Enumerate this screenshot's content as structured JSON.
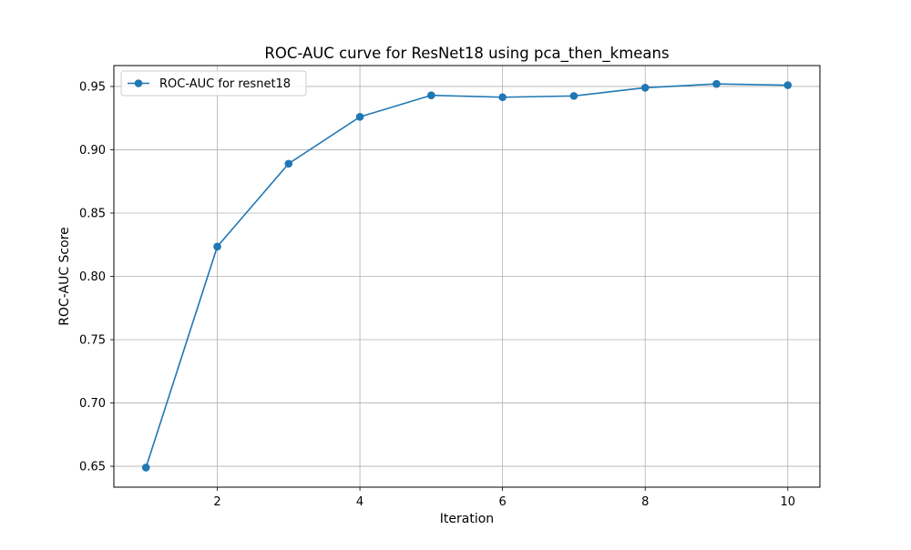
{
  "chart_data": {
    "type": "line",
    "title": "ROC-AUC curve for ResNet18 using pca_then_kmeans",
    "xlabel": "Iteration",
    "ylabel": "ROC-AUC Score",
    "grid": true,
    "legend_placement": "top-left",
    "xlim": [
      0.55,
      10.45
    ],
    "ylim": [
      0.6335,
      0.9665
    ],
    "x_ticks": [
      2,
      4,
      6,
      8,
      10
    ],
    "y_ticks": [
      0.65,
      0.7,
      0.75,
      0.8,
      0.85,
      0.9,
      0.95
    ],
    "y_tick_labels": [
      "0.65",
      "0.70",
      "0.75",
      "0.80",
      "0.85",
      "0.90",
      "0.95"
    ],
    "x_tick_labels": [
      "2",
      "4",
      "6",
      "8",
      "10"
    ],
    "series": [
      {
        "name": "ROC-AUC for resnet18",
        "color": "#1f77b4",
        "x": [
          1,
          2,
          3,
          4,
          5,
          6,
          7,
          8,
          9,
          10
        ],
        "y": [
          0.649,
          0.8235,
          0.889,
          0.926,
          0.943,
          0.9415,
          0.9425,
          0.949,
          0.952,
          0.951
        ]
      }
    ]
  }
}
